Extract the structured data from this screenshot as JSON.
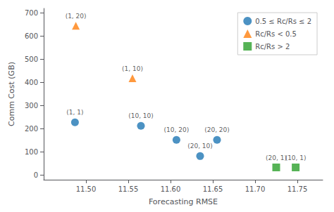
{
  "chart_data": {
    "type": "scatter",
    "xlabel": "Forecasting RMSE",
    "ylabel": "Comm Cost (GB)",
    "series": [
      {
        "name": "0.5 ≤ Rc/Rs ≤ 2",
        "color": "#1f77b4",
        "marker": "circle",
        "x": [
          11.487,
          11.565,
          11.607,
          11.635,
          11.655
        ],
        "values": [
          228,
          213,
          152,
          82,
          152
        ],
        "annotations": [
          "(1, 1)",
          "(10, 10)",
          "(10, 20)",
          "(20, 10)",
          "(20, 20)"
        ]
      },
      {
        "name": "Rc/Rs < 0.5",
        "color": "#ff7f0e",
        "marker": "triangle",
        "x": [
          11.488,
          11.555
        ],
        "values": [
          645,
          418
        ],
        "annotations": [
          "(1, 20)",
          "(1, 10)"
        ]
      },
      {
        "name": "Rc/Rs > 2",
        "color": "#2ca02c",
        "marker": "square",
        "x": [
          11.725,
          11.748
        ],
        "values": [
          33,
          33
        ],
        "annotations": [
          "(20, 1)",
          "(10, 1)"
        ]
      }
    ],
    "xlim": [
      11.45,
      11.78
    ],
    "ylim": [
      -20,
      720
    ],
    "xticks": [
      {
        "value": 11.5,
        "label": "11.50"
      },
      11.55,
      {
        "value": 11.6,
        "label": "11.60"
      },
      11.65,
      {
        "value": 11.7,
        "label": "11.70"
      },
      11.75
    ],
    "yticks": [
      0,
      100,
      200,
      300,
      400,
      500,
      600,
      700
    ],
    "grid": false,
    "legend": "upper right"
  }
}
